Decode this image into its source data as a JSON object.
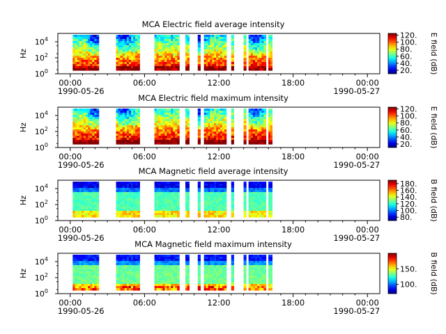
{
  "figure": {
    "x_tick_labels": [
      "00:00",
      "06:00",
      "12:00",
      "18:00",
      "00:00"
    ],
    "date_labels": [
      "1990-05-26",
      "1990-05-27"
    ]
  },
  "chart_data": [
    {
      "type": "heatmap",
      "title": "MCA  Electric field average intensity",
      "ylabel": "Hz",
      "y_scale": "log",
      "y_tick_labels": [
        {
          "base": "10",
          "exp": "0"
        },
        {
          "base": "10",
          "exp": "2"
        },
        {
          "base": "10",
          "exp": "4"
        }
      ],
      "colorbar": {
        "label": "E field (dB)",
        "ticks": [
          "20.",
          "40.",
          "60.",
          "80.",
          "100.",
          "120."
        ],
        "range": [
          10,
          125
        ]
      },
      "x_range_hours": [
        -1,
        25
      ],
      "data_segments_hours": [
        [
          0.2,
          2.3
        ],
        [
          3.7,
          5.6
        ],
        [
          6.8,
          8.8
        ],
        [
          9.3,
          9.6
        ],
        [
          10.3,
          10.5
        ],
        [
          10.8,
          12.6
        ],
        [
          13.0,
          13.2
        ],
        [
          14.0,
          14.2
        ],
        [
          14.4,
          15.8
        ],
        [
          16.0,
          16.3
        ]
      ],
      "colormap": "jet",
      "grid": false
    },
    {
      "type": "heatmap",
      "title": "MCA  Electric field maximum intensity",
      "ylabel": "Hz",
      "y_scale": "log",
      "y_tick_labels": [
        {
          "base": "10",
          "exp": "0"
        },
        {
          "base": "10",
          "exp": "2"
        },
        {
          "base": "10",
          "exp": "4"
        }
      ],
      "colorbar": {
        "label": "E field (dB)",
        "ticks": [
          "20.",
          "40.",
          "60.",
          "80.",
          "100.",
          "120."
        ],
        "range": [
          10,
          125
        ]
      },
      "x_range_hours": [
        -1,
        25
      ],
      "data_segments_hours": [
        [
          0.2,
          2.3
        ],
        [
          3.7,
          5.6
        ],
        [
          6.8,
          8.8
        ],
        [
          9.3,
          9.6
        ],
        [
          10.3,
          10.5
        ],
        [
          10.8,
          12.6
        ],
        [
          13.0,
          13.2
        ],
        [
          14.0,
          14.2
        ],
        [
          14.4,
          15.8
        ],
        [
          16.0,
          16.3
        ]
      ],
      "colormap": "jet",
      "grid": false
    },
    {
      "type": "heatmap",
      "title": "MCA  Magnetic field average intensity",
      "ylabel": "Hz",
      "y_scale": "log",
      "y_tick_labels": [
        {
          "base": "10",
          "exp": "0"
        },
        {
          "base": "10",
          "exp": "2"
        },
        {
          "base": "10",
          "exp": "4"
        }
      ],
      "colorbar": {
        "label": "B field (dB)",
        "ticks": [
          "80.",
          "100.",
          "120.",
          "140.",
          "160.",
          "180."
        ],
        "range": [
          70,
          190
        ]
      },
      "x_range_hours": [
        -1,
        25
      ],
      "data_segments_hours": [
        [
          0.2,
          2.3
        ],
        [
          3.7,
          5.6
        ],
        [
          6.8,
          8.8
        ],
        [
          9.3,
          9.6
        ],
        [
          10.3,
          10.5
        ],
        [
          10.8,
          12.6
        ],
        [
          13.0,
          13.2
        ],
        [
          14.0,
          14.2
        ],
        [
          14.4,
          15.8
        ],
        [
          16.0,
          16.3
        ]
      ],
      "colormap": "jet",
      "grid": false
    },
    {
      "type": "heatmap",
      "title": "MCA  Magnetic field maximum intensity",
      "ylabel": "Hz",
      "y_scale": "log",
      "y_tick_labels": [
        {
          "base": "10",
          "exp": "0"
        },
        {
          "base": "10",
          "exp": "2"
        },
        {
          "base": "10",
          "exp": "4"
        }
      ],
      "colorbar": {
        "label": "B field (dB)",
        "ticks": [
          "100.",
          "150."
        ],
        "range": [
          70,
          200
        ]
      },
      "x_range_hours": [
        -1,
        25
      ],
      "data_segments_hours": [
        [
          0.2,
          2.3
        ],
        [
          3.7,
          5.6
        ],
        [
          6.8,
          8.8
        ],
        [
          9.3,
          9.6
        ],
        [
          10.3,
          10.5
        ],
        [
          10.8,
          12.6
        ],
        [
          13.0,
          13.2
        ],
        [
          14.0,
          14.2
        ],
        [
          14.4,
          15.8
        ],
        [
          16.0,
          16.3
        ]
      ],
      "colormap": "jet",
      "grid": false
    }
  ]
}
